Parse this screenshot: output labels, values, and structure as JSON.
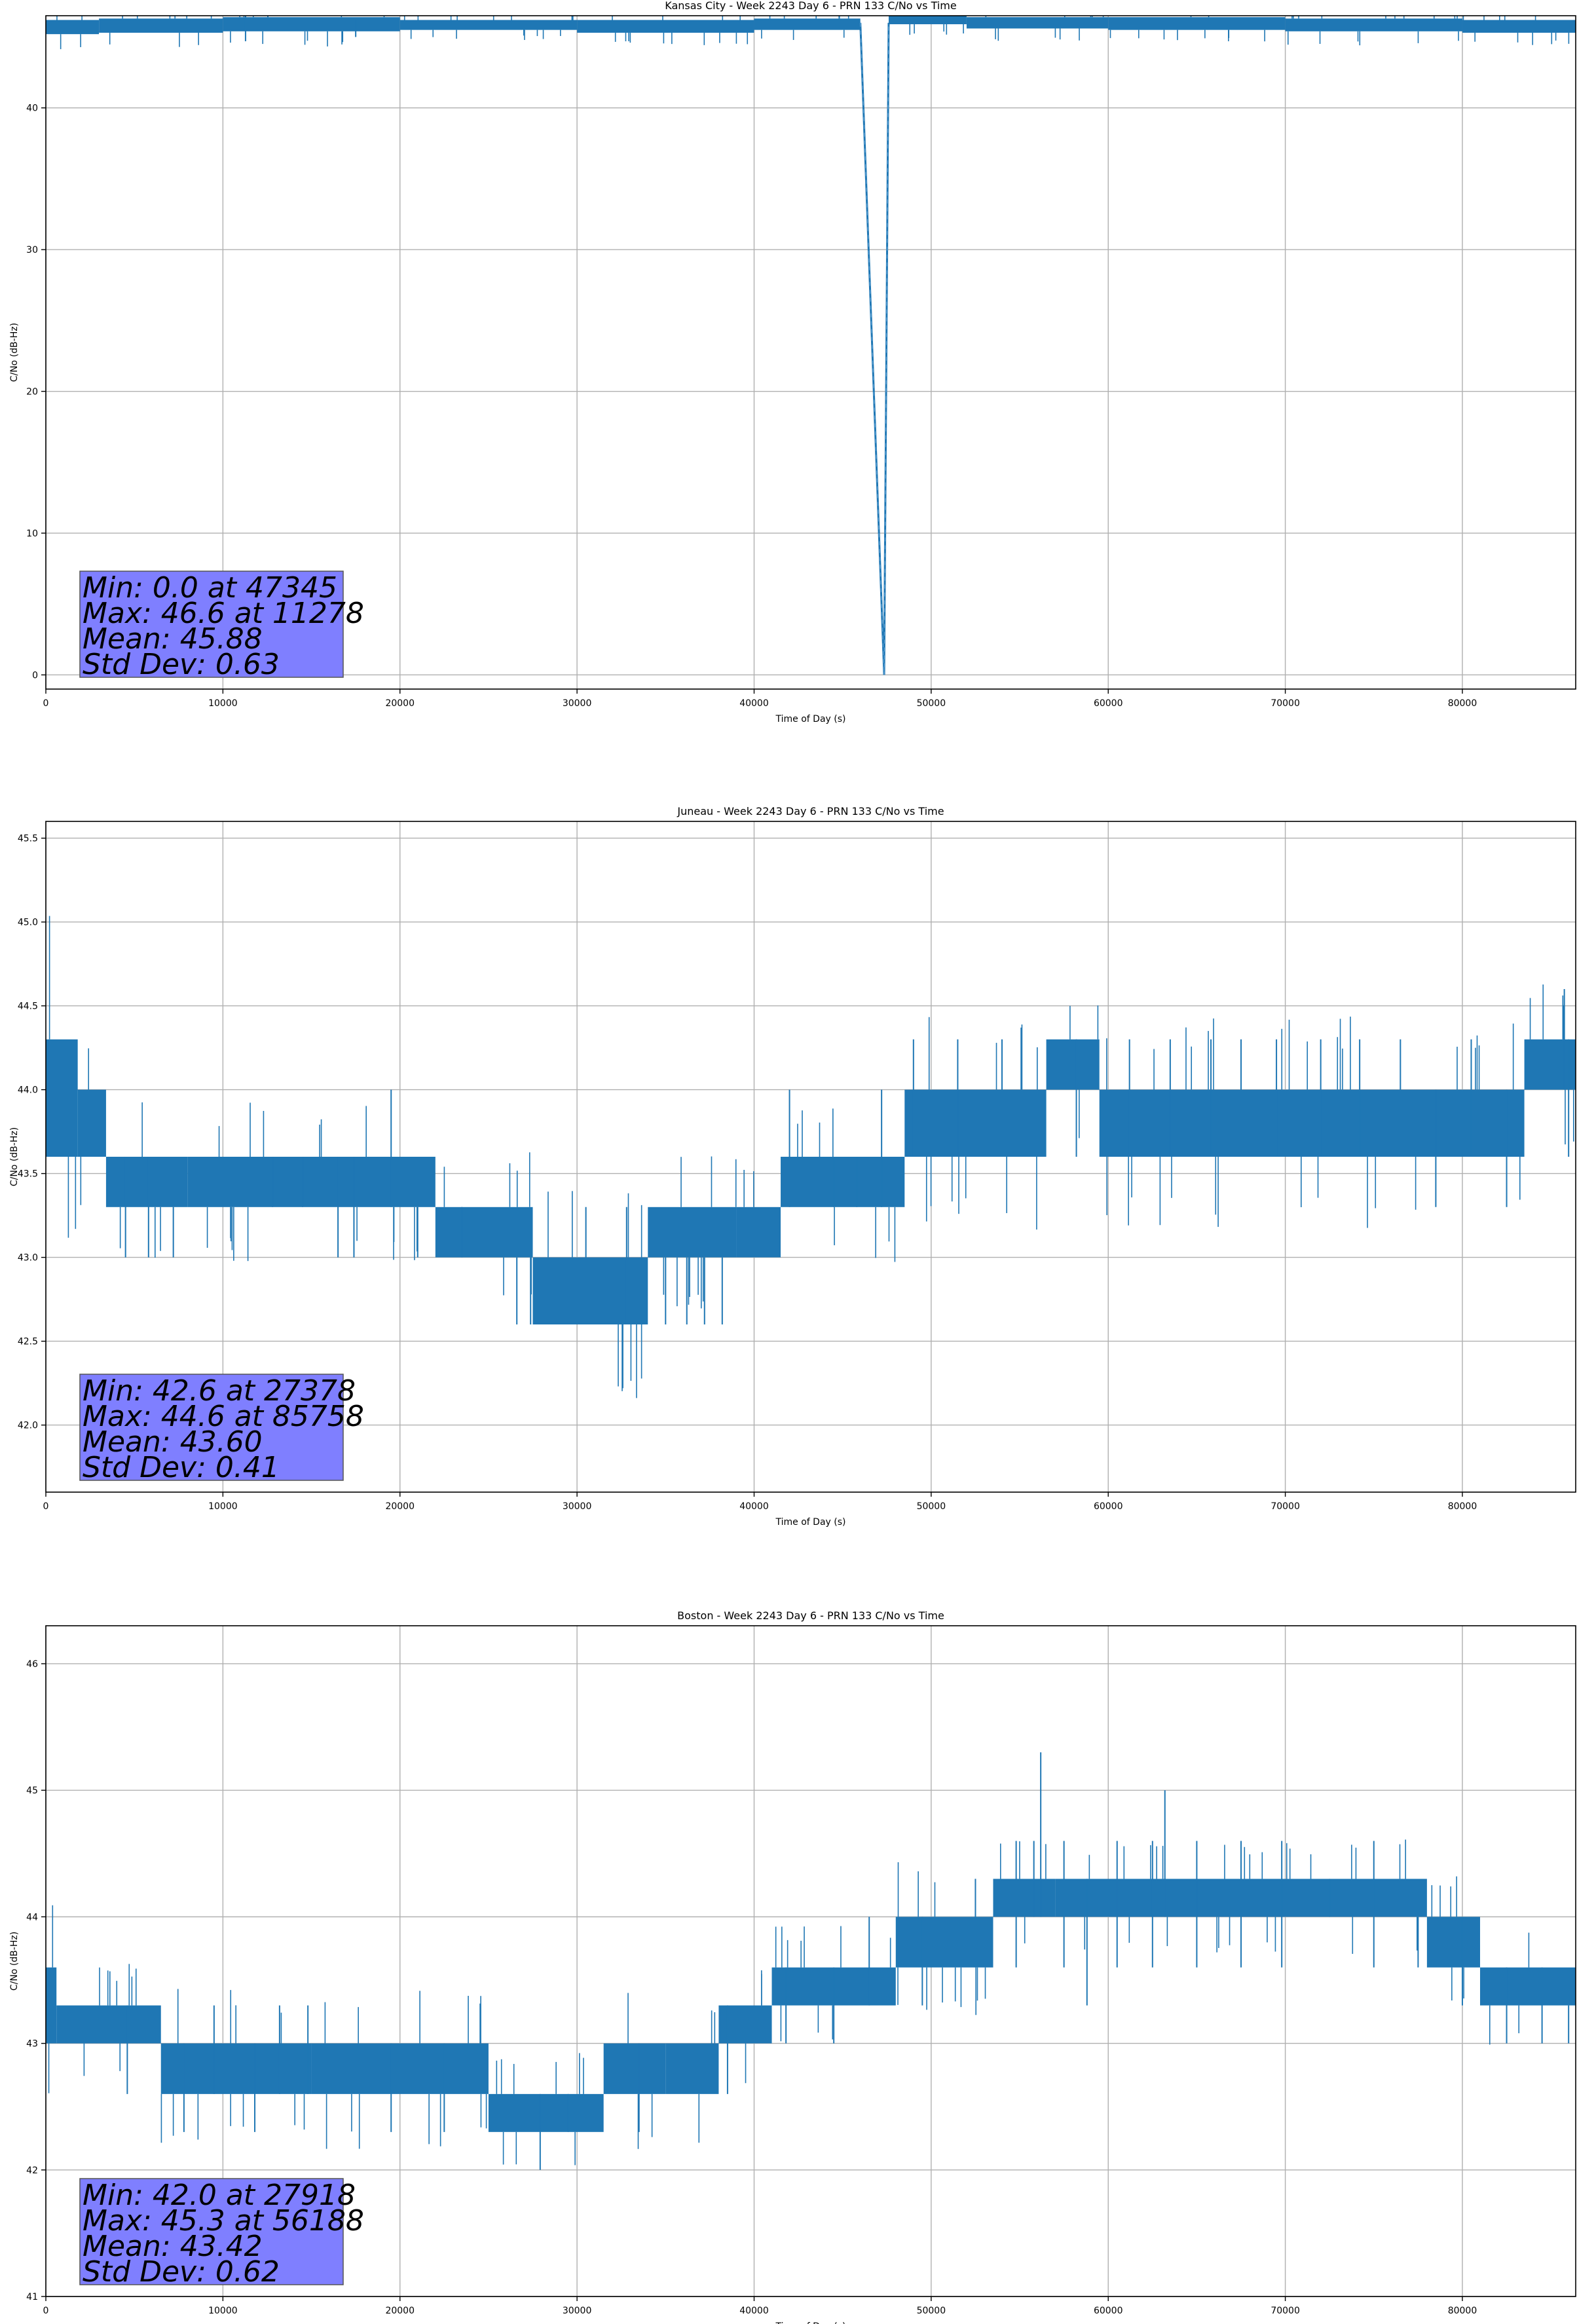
{
  "chart_data": [
    {
      "type": "line",
      "title": "Kansas City - Week 2243 Day 6 - PRN 133 C/No vs Time",
      "xlabel": "Time of Day (s)",
      "ylabel": "C/No (dB-Hz)",
      "xlim": [
        0,
        86400
      ],
      "ylim": [
        -1,
        46.5
      ],
      "xticks": [
        0,
        10000,
        20000,
        30000,
        40000,
        50000,
        60000,
        70000,
        80000
      ],
      "yticks": [
        0,
        10,
        20,
        30,
        40
      ],
      "ytick_format": "int",
      "grid": true,
      "color": "#1f77b4",
      "bands": [
        {
          "x": [
            0,
            3000
          ],
          "lo": 45.2,
          "hi": 46.2
        },
        {
          "x": [
            3000,
            10000
          ],
          "lo": 45.3,
          "hi": 46.3
        },
        {
          "x": [
            10000,
            20000
          ],
          "lo": 45.4,
          "hi": 46.4
        },
        {
          "x": [
            20000,
            30000
          ],
          "lo": 45.5,
          "hi": 46.2
        },
        {
          "x": [
            30000,
            40000
          ],
          "lo": 45.3,
          "hi": 46.2
        },
        {
          "x": [
            40000,
            46000
          ],
          "lo": 45.5,
          "hi": 46.3
        },
        {
          "x": [
            47600,
            52000
          ],
          "lo": 45.9,
          "hi": 46.6
        },
        {
          "x": [
            52000,
            60000
          ],
          "lo": 45.6,
          "hi": 46.4
        },
        {
          "x": [
            60000,
            70000
          ],
          "lo": 45.5,
          "hi": 46.4
        },
        {
          "x": [
            70000,
            80000
          ],
          "lo": 45.4,
          "hi": 46.3
        },
        {
          "x": [
            80000,
            86400
          ],
          "lo": 45.3,
          "hi": 46.2
        }
      ],
      "line": [
        [
          46000,
          46.0
        ],
        [
          47345,
          0.0
        ],
        [
          47600,
          46.0
        ]
      ],
      "spikes": [
        [
          11278,
          44.7,
          46.6
        ],
        [
          17500,
          45.0,
          46.2
        ],
        [
          27000,
          45.1,
          46.2
        ]
      ],
      "stats": {
        "min": "Min: 0.0 at 47345",
        "max": "Max: 46.6 at 11278",
        "mean": "Mean: 45.88",
        "std": "Std Dev: 0.63"
      }
    },
    {
      "type": "line",
      "title": "Juneau - Week 2243 Day 6 - PRN 133 C/No vs Time",
      "xlabel": "Time of Day (s)",
      "ylabel": "C/No (dB-Hz)",
      "xlim": [
        0,
        86400
      ],
      "ylim": [
        41.6,
        45.6
      ],
      "xticks": [
        0,
        10000,
        20000,
        30000,
        40000,
        50000,
        60000,
        70000,
        80000
      ],
      "yticks": [
        42.0,
        42.5,
        43.0,
        43.5,
        44.0,
        44.5,
        45.0,
        45.5
      ],
      "ytick_format": "1dp",
      "grid": true,
      "color": "#1f77b4",
      "bands": [
        {
          "x": [
            0,
            1800
          ],
          "lo": 43.6,
          "hi": 44.3
        },
        {
          "x": [
            1800,
            3400
          ],
          "lo": 43.6,
          "hi": 44.0
        },
        {
          "x": [
            3400,
            8000
          ],
          "lo": 43.3,
          "hi": 43.6
        },
        {
          "x": [
            8000,
            22000
          ],
          "lo": 43.3,
          "hi": 43.6
        },
        {
          "x": [
            22000,
            27500
          ],
          "lo": 43.0,
          "hi": 43.3
        },
        {
          "x": [
            27500,
            34000
          ],
          "lo": 42.6,
          "hi": 43.0
        },
        {
          "x": [
            34000,
            39000
          ],
          "lo": 43.0,
          "hi": 43.3
        },
        {
          "x": [
            39000,
            41500
          ],
          "lo": 43.0,
          "hi": 43.3
        },
        {
          "x": [
            41500,
            48500
          ],
          "lo": 43.3,
          "hi": 43.6
        },
        {
          "x": [
            48500,
            56500
          ],
          "lo": 43.6,
          "hi": 44.0
        },
        {
          "x": [
            56500,
            59500
          ],
          "lo": 44.0,
          "hi": 44.3
        },
        {
          "x": [
            59500,
            83500
          ],
          "lo": 43.6,
          "hi": 44.0
        },
        {
          "x": [
            83500,
            86400
          ],
          "lo": 44.0,
          "hi": 44.3
        }
      ],
      "spikes": [
        [
          4500,
          43.0,
          43.6
        ],
        [
          5800,
          43.0,
          43.6
        ],
        [
          7200,
          43.0,
          43.3
        ],
        [
          12800,
          43.3,
          43.6
        ],
        [
          14500,
          43.3,
          43.6
        ],
        [
          16500,
          43.0,
          43.6
        ],
        [
          17400,
          43.0,
          43.6
        ],
        [
          19500,
          43.3,
          44.0
        ],
        [
          21000,
          43.0,
          43.3
        ],
        [
          23500,
          43.0,
          43.3
        ],
        [
          26600,
          42.6,
          43.0
        ],
        [
          27378,
          42.6,
          43.0
        ],
        [
          30500,
          42.6,
          43.3
        ],
        [
          32800,
          42.6,
          43.3
        ],
        [
          35000,
          42.6,
          43.0
        ],
        [
          36200,
          42.6,
          43.0
        ],
        [
          37200,
          42.6,
          43.0
        ],
        [
          38200,
          42.6,
          43.0
        ],
        [
          42000,
          43.3,
          44.0
        ],
        [
          44500,
          43.3,
          43.6
        ],
        [
          45800,
          43.3,
          43.6
        ],
        [
          47200,
          43.3,
          44.0
        ],
        [
          49000,
          43.6,
          44.3
        ],
        [
          51500,
          43.6,
          44.3
        ],
        [
          54000,
          43.6,
          44.3
        ],
        [
          58200,
          43.6,
          44.3
        ],
        [
          61200,
          43.6,
          44.3
        ],
        [
          63500,
          43.6,
          44.3
        ],
        [
          65800,
          43.6,
          44.3
        ],
        [
          67500,
          43.6,
          44.3
        ],
        [
          69500,
          43.6,
          44.3
        ],
        [
          72000,
          43.6,
          44.3
        ],
        [
          74200,
          43.6,
          44.3
        ],
        [
          76500,
          43.6,
          44.3
        ],
        [
          78500,
          43.3,
          44.0
        ],
        [
          80500,
          43.6,
          44.3
        ],
        [
          82500,
          43.3,
          44.0
        ],
        [
          85758,
          44.0,
          44.6
        ],
        [
          86000,
          43.6,
          44.3
        ]
      ],
      "stats": {
        "min": "Min: 42.6 at 27378",
        "max": "Max: 44.6 at 85758",
        "mean": "Mean: 43.60",
        "std": "Std Dev: 0.41"
      }
    },
    {
      "type": "line",
      "title": "Boston - Week 2243 Day 6 - PRN 133 C/No vs Time",
      "xlabel": "Time of Day (s)",
      "ylabel": "C/No (dB-Hz)",
      "xlim": [
        0,
        86400
      ],
      "ylim": [
        41,
        46.3
      ],
      "xticks": [
        0,
        10000,
        20000,
        30000,
        40000,
        50000,
        60000,
        70000,
        80000
      ],
      "yticks": [
        41,
        42,
        43,
        44,
        45,
        46
      ],
      "ytick_format": "int",
      "grid": true,
      "color": "#1f77b4",
      "bands": [
        {
          "x": [
            0,
            600
          ],
          "lo": 43.0,
          "hi": 43.6
        },
        {
          "x": [
            600,
            6500
          ],
          "lo": 43.0,
          "hi": 43.3
        },
        {
          "x": [
            6500,
            15000
          ],
          "lo": 42.6,
          "hi": 43.0
        },
        {
          "x": [
            15000,
            25000
          ],
          "lo": 42.6,
          "hi": 43.0
        },
        {
          "x": [
            25000,
            31500
          ],
          "lo": 42.3,
          "hi": 42.6
        },
        {
          "x": [
            31500,
            35000
          ],
          "lo": 42.6,
          "hi": 43.0
        },
        {
          "x": [
            35000,
            38000
          ],
          "lo": 42.6,
          "hi": 43.0
        },
        {
          "x": [
            38000,
            41000
          ],
          "lo": 43.0,
          "hi": 43.3
        },
        {
          "x": [
            41000,
            48000
          ],
          "lo": 43.3,
          "hi": 43.6
        },
        {
          "x": [
            48000,
            53500
          ],
          "lo": 43.6,
          "hi": 44.0
        },
        {
          "x": [
            53500,
            57000
          ],
          "lo": 44.0,
          "hi": 44.3
        },
        {
          "x": [
            57000,
            78000
          ],
          "lo": 44.0,
          "hi": 44.3
        },
        {
          "x": [
            78000,
            81000
          ],
          "lo": 43.6,
          "hi": 44.0
        },
        {
          "x": [
            81000,
            86400
          ],
          "lo": 43.3,
          "hi": 43.6
        }
      ],
      "spikes": [
        [
          4600,
          42.6,
          43.3
        ],
        [
          7800,
          42.3,
          43.0
        ],
        [
          9500,
          42.6,
          43.3
        ],
        [
          11800,
          42.3,
          43.0
        ],
        [
          13200,
          42.6,
          43.3
        ],
        [
          14800,
          42.6,
          43.3
        ],
        [
          19500,
          42.3,
          43.0
        ],
        [
          22500,
          42.3,
          43.0
        ],
        [
          27918,
          42.0,
          42.6
        ],
        [
          29500,
          42.3,
          42.6
        ],
        [
          33500,
          42.3,
          43.0
        ],
        [
          38500,
          42.6,
          43.3
        ],
        [
          41800,
          43.0,
          43.6
        ],
        [
          44500,
          43.0,
          43.6
        ],
        [
          46500,
          43.3,
          44.0
        ],
        [
          49500,
          43.3,
          44.0
        ],
        [
          52500,
          43.6,
          44.3
        ],
        [
          54800,
          43.6,
          44.6
        ],
        [
          55800,
          44.0,
          44.6
        ],
        [
          56188,
          44.0,
          45.3
        ],
        [
          57500,
          43.6,
          44.6
        ],
        [
          58800,
          43.3,
          44.3
        ],
        [
          60500,
          43.6,
          44.6
        ],
        [
          62500,
          43.6,
          44.6
        ],
        [
          63200,
          44.0,
          45.0
        ],
        [
          65000,
          43.6,
          44.6
        ],
        [
          67500,
          43.6,
          44.6
        ],
        [
          69800,
          43.6,
          44.6
        ],
        [
          72500,
          44.0,
          44.3
        ],
        [
          75000,
          43.6,
          44.6
        ],
        [
          77500,
          43.6,
          44.0
        ],
        [
          80000,
          43.3,
          44.0
        ],
        [
          82500,
          43.0,
          43.6
        ],
        [
          84500,
          43.0,
          43.6
        ],
        [
          86000,
          43.0,
          43.3
        ]
      ],
      "stats": {
        "min": "Min: 42.0 at 27918",
        "max": "Max: 45.3 at 56188",
        "mean": "Mean: 43.42",
        "std": "Std Dev: 0.62"
      }
    }
  ]
}
